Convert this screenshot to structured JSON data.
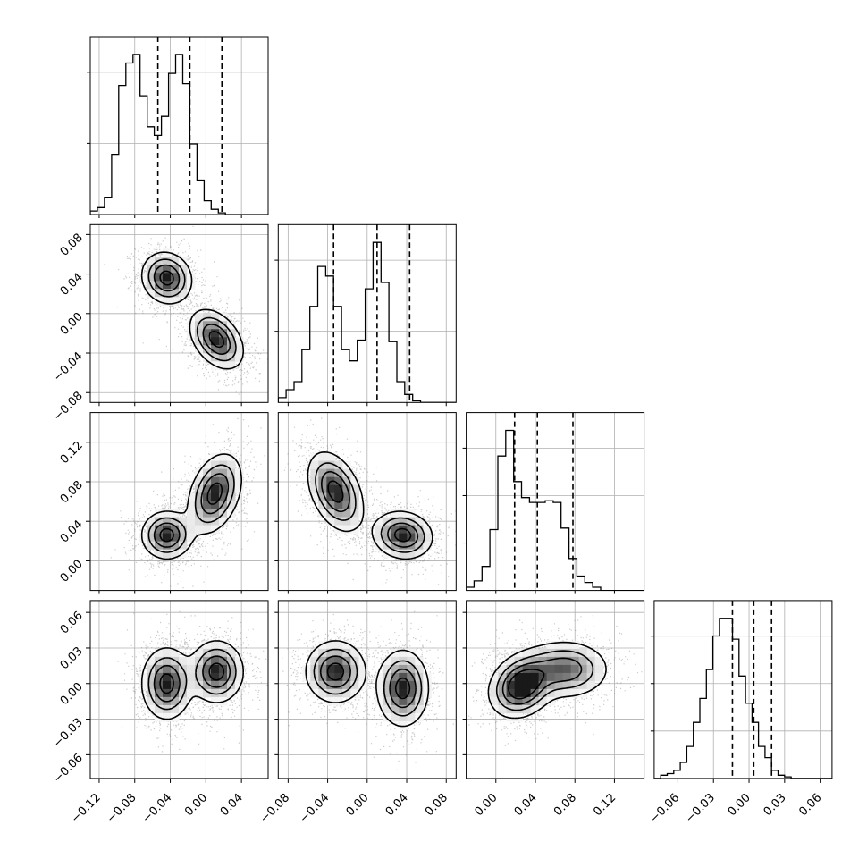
{
  "chart_data": {
    "type": "corner",
    "title": "",
    "grid": true,
    "colors": {
      "line": "#000000",
      "grid": "#b0b0b0",
      "density": "#000000",
      "quantile": "#000000"
    },
    "params": [
      {
        "range": [
          -0.13,
          0.07
        ],
        "ticks": [
          -0.12,
          -0.08,
          -0.04,
          0.0,
          0.04
        ],
        "tick_labels": [
          "−0.12",
          "−0.08",
          "−0.04",
          "0.00",
          "0.04"
        ],
        "hist_y_ticks": 2
      },
      {
        "range": [
          -0.09,
          0.09
        ],
        "ticks": [
          -0.08,
          -0.04,
          0.0,
          0.04,
          0.08
        ],
        "tick_labels": [
          "−0.08",
          "−0.04",
          "0.00",
          "0.04",
          "0.08"
        ],
        "hist_y_ticks": 2
      },
      {
        "range": [
          -0.03,
          0.15
        ],
        "ticks": [
          0.0,
          0.04,
          0.08,
          0.12
        ],
        "tick_labels": [
          "0.00",
          "0.04",
          "0.08",
          "0.12"
        ],
        "hist_y_ticks": 3
      },
      {
        "range": [
          -0.08,
          0.07
        ],
        "ticks": [
          -0.06,
          -0.03,
          0.0,
          0.03,
          0.06
        ],
        "tick_labels": [
          "−0.06",
          "−0.03",
          "0.00",
          "0.03",
          "0.06"
        ],
        "hist_y_ticks": 3
      }
    ],
    "histograms": [
      {
        "param": 0,
        "edges_start": -0.13,
        "bin_width": 0.008,
        "counts": [
          2,
          4,
          10,
          35,
          75,
          88,
          93,
          69,
          51,
          46,
          57,
          82,
          93,
          76,
          41,
          20,
          8,
          3,
          1,
          0,
          0,
          0,
          0,
          0,
          0
        ],
        "quantiles": [
          -0.054,
          -0.018,
          0.018
        ]
      },
      {
        "param": 1,
        "edges_start": -0.09,
        "bin_width": 0.008,
        "counts": [
          3,
          8,
          13,
          33,
          60,
          85,
          79,
          60,
          33,
          26,
          39,
          71,
          100,
          75,
          38,
          13,
          5,
          1,
          0,
          0,
          0,
          0,
          0
        ],
        "quantiles": [
          -0.034,
          0.01,
          0.043
        ]
      },
      {
        "param": 2,
        "edges_start": -0.03,
        "bin_width": 0.008,
        "counts": [
          2,
          6,
          15,
          38,
          84,
          100,
          68,
          58,
          55,
          55,
          56,
          55,
          39,
          20,
          9,
          5,
          2,
          0,
          0,
          0,
          0,
          0,
          0
        ],
        "quantiles": [
          0.019,
          0.042,
          0.078
        ]
      },
      {
        "param": 3,
        "edges_start": -0.08,
        "bin_width": 0.0055,
        "counts": [
          0,
          2,
          3,
          5,
          10,
          20,
          35,
          50,
          68,
          89,
          100,
          100,
          87,
          64,
          47,
          35,
          20,
          13,
          5,
          2,
          1,
          0,
          0,
          0,
          0,
          0,
          0,
          0
        ],
        "quantiles": [
          -0.014,
          0.004,
          0.019
        ]
      }
    ],
    "pairs": [
      {
        "x": 0,
        "y": 1,
        "modes": [
          {
            "cx": -0.044,
            "cy": 0.036,
            "sx": 0.014,
            "sy": 0.013,
            "rho": -0.1,
            "w": 1
          },
          {
            "cx": 0.012,
            "cy": -0.026,
            "sx": 0.015,
            "sy": 0.015,
            "rho": -0.4,
            "w": 1
          }
        ]
      },
      {
        "x": 0,
        "y": 2,
        "modes": [
          {
            "cx": -0.044,
            "cy": 0.026,
            "sx": 0.014,
            "sy": 0.012,
            "rho": 0.0,
            "w": 1
          },
          {
            "cx": 0.01,
            "cy": 0.068,
            "sx": 0.015,
            "sy": 0.02,
            "rho": 0.35,
            "w": 1
          }
        ]
      },
      {
        "x": 1,
        "y": 2,
        "modes": [
          {
            "cx": -0.032,
            "cy": 0.07,
            "sx": 0.014,
            "sy": 0.02,
            "rho": -0.4,
            "w": 1
          },
          {
            "cx": 0.036,
            "cy": 0.026,
            "sx": 0.015,
            "sy": 0.012,
            "rho": -0.1,
            "w": 1
          }
        ]
      },
      {
        "x": 0,
        "y": 3,
        "modes": [
          {
            "cx": -0.044,
            "cy": 0.0,
            "sx": 0.014,
            "sy": 0.015,
            "rho": 0.0,
            "w": 1
          },
          {
            "cx": 0.012,
            "cy": 0.01,
            "sx": 0.015,
            "sy": 0.013,
            "rho": 0.0,
            "w": 1
          }
        ]
      },
      {
        "x": 1,
        "y": 3,
        "modes": [
          {
            "cx": -0.032,
            "cy": 0.01,
            "sx": 0.015,
            "sy": 0.013,
            "rho": 0.0,
            "w": 1
          },
          {
            "cx": 0.036,
            "cy": -0.004,
            "sx": 0.013,
            "sy": 0.016,
            "rho": 0.0,
            "w": 1
          }
        ]
      },
      {
        "x": 2,
        "y": 3,
        "modes": [
          {
            "cx": 0.026,
            "cy": -0.002,
            "sx": 0.016,
            "sy": 0.013,
            "rho": 0.2,
            "w": 1.2
          },
          {
            "cx": 0.07,
            "cy": 0.012,
            "sx": 0.022,
            "sy": 0.012,
            "rho": 0.0,
            "w": 0.8
          }
        ]
      }
    ]
  }
}
